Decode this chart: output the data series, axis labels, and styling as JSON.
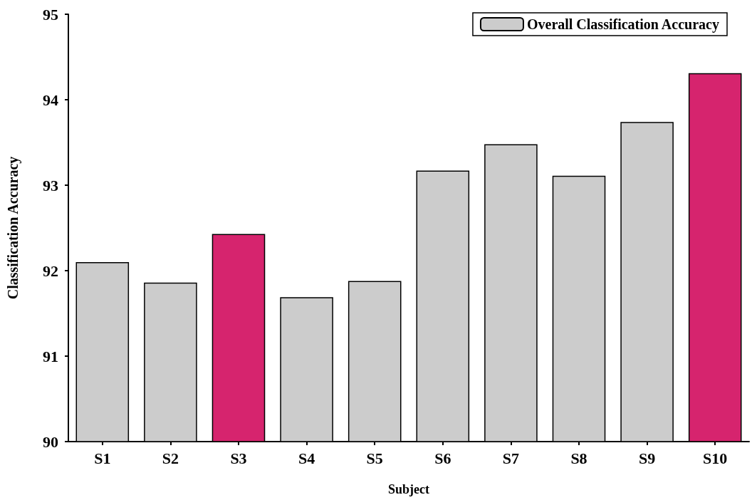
{
  "chart_data": {
    "type": "bar",
    "xlabel": "Subject",
    "ylabel": "Classification Accuracy",
    "categories": [
      "S1",
      "S2",
      "S3",
      "S4",
      "S5",
      "S6",
      "S7",
      "S8",
      "S9",
      "S10"
    ],
    "series": [
      {
        "name": "Overall Classification Accuracy",
        "values": [
          92.1,
          91.86,
          92.43,
          91.69,
          91.88,
          93.17,
          93.48,
          93.11,
          93.74,
          94.31
        ],
        "colors": [
          "#cccccc",
          "#cccccc",
          "#d6246e",
          "#cccccc",
          "#cccccc",
          "#cccccc",
          "#cccccc",
          "#cccccc",
          "#cccccc",
          "#d6246e"
        ]
      }
    ],
    "ylim": [
      90,
      95
    ],
    "yticks": [
      90,
      91,
      92,
      93,
      94,
      95
    ],
    "grid": false,
    "legend": "top right"
  }
}
